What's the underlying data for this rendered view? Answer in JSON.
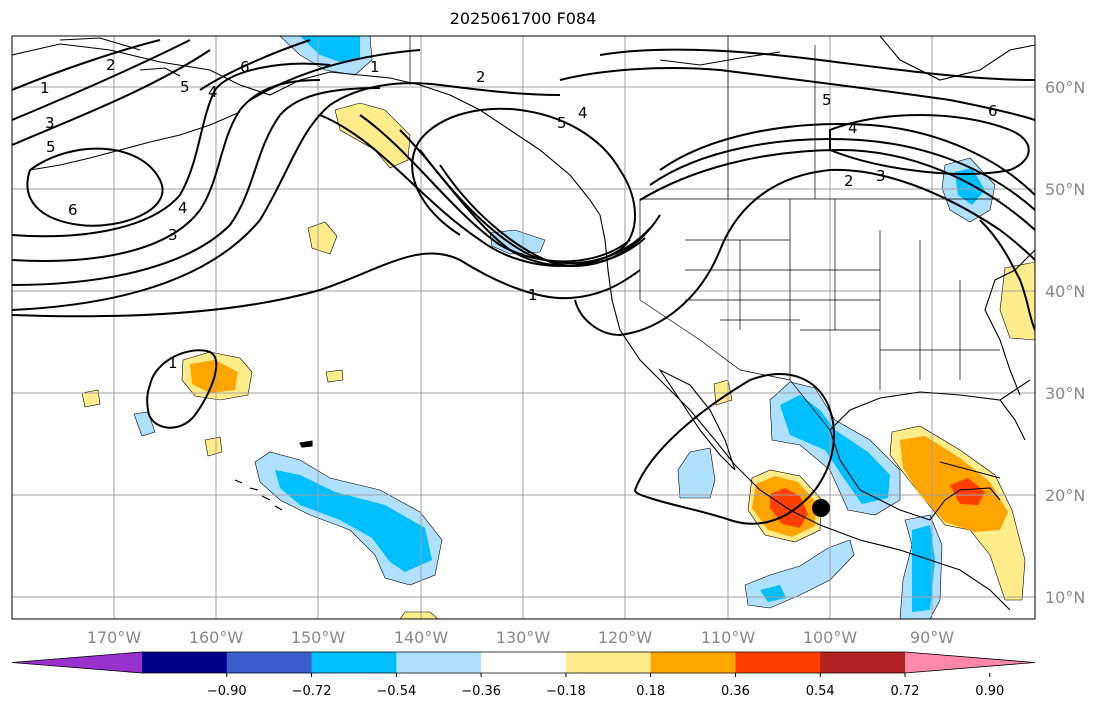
{
  "title": "2025061700 F084",
  "map": {
    "lat_ticks": [
      "60°N",
      "50°N",
      "40°N",
      "30°N",
      "20°N",
      "10°N"
    ],
    "lon_ticks": [
      "170°W",
      "160°W",
      "150°W",
      "140°W",
      "130°W",
      "120°W",
      "110°W",
      "100°W",
      "90°W"
    ],
    "contour_labels": [
      "1",
      "2",
      "3",
      "4",
      "5",
      "6"
    ],
    "marker": "black-dot"
  },
  "colorbar": {
    "ticks": [
      "−0.90",
      "−0.72",
      "−0.54",
      "−0.36",
      "−0.18",
      "0.18",
      "0.36",
      "0.54",
      "0.72",
      "0.90"
    ],
    "colors": [
      "#9932cc",
      "#00008b",
      "#3a5fcd",
      "#00bfff",
      "#b0e0ff",
      "#ffffff",
      "#ffec8b",
      "#ffa500",
      "#ff4000",
      "#b22222",
      "#ff88aa"
    ]
  },
  "fill_colors": {
    "light_blue": "#b0e0ff",
    "blue": "#00bfff",
    "yellow": "#ffec8b",
    "orange": "#ffa500",
    "red_orange": "#ff4000"
  }
}
